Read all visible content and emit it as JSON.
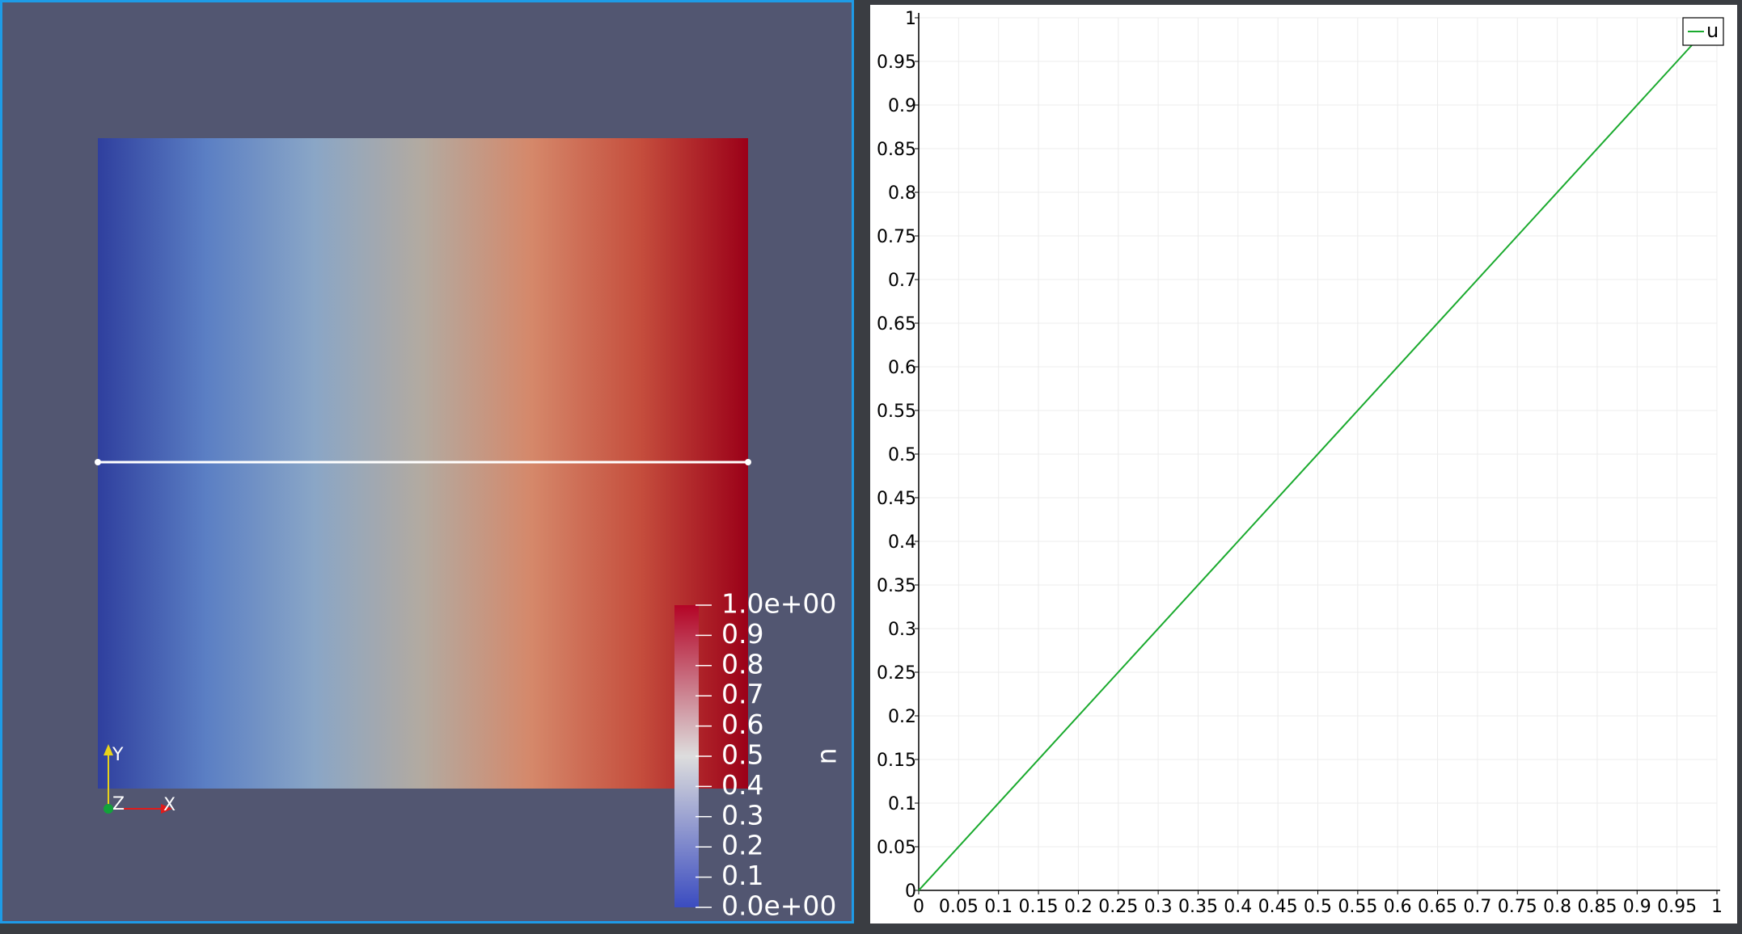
{
  "render_view": {
    "color_map": {
      "low_color": "#3b4cc0",
      "mid_color": "#dddddd",
      "high_color": "#b40426",
      "field_gradient": [
        "#2f3f9e",
        "#5b7fc4",
        "#8aa6c6",
        "#b3aaa0",
        "#d5886a",
        "#c54e3d",
        "#9b0018"
      ]
    },
    "scalar_bar": {
      "title": "u",
      "labels": [
        "1.0e+00",
        "0.9",
        "0.8",
        "0.7",
        "0.6",
        "0.5",
        "0.4",
        "0.3",
        "0.2",
        "0.1",
        "0.0e+00"
      ]
    },
    "orientation_axes": {
      "x_label": "X",
      "y_label": "Y",
      "z_label": "Z",
      "x_color": "#e01b1b",
      "y_color": "#e8d31a",
      "z_color": "#12a33a"
    },
    "probe_line_color": "#ffffff"
  },
  "chart_data": {
    "type": "line",
    "title": "",
    "xlabel": "",
    "ylabel": "",
    "xlim": [
      0,
      1
    ],
    "ylim": [
      0,
      1
    ],
    "grid": true,
    "legend_placement": "top-right",
    "x_tick_labels": [
      "0",
      "0.05",
      "0.1",
      "0.15",
      "0.2",
      "0.25",
      "0.3",
      "0.35",
      "0.4",
      "0.45",
      "0.5",
      "0.55",
      "0.6",
      "0.65",
      "0.7",
      "0.75",
      "0.8",
      "0.85",
      "0.9",
      "0.95",
      "1"
    ],
    "y_tick_labels": [
      "0",
      "0.05",
      "0.1",
      "0.15",
      "0.2",
      "0.25",
      "0.3",
      "0.35",
      "0.4",
      "0.45",
      "0.5",
      "0.55",
      "0.6",
      "0.65",
      "0.7",
      "0.75",
      "0.8",
      "0.85",
      "0.9",
      "0.95",
      "1"
    ],
    "series": [
      {
        "name": "u",
        "color": "#1aaa2e",
        "x": [
          0,
          1
        ],
        "y": [
          0,
          1
        ]
      }
    ]
  }
}
